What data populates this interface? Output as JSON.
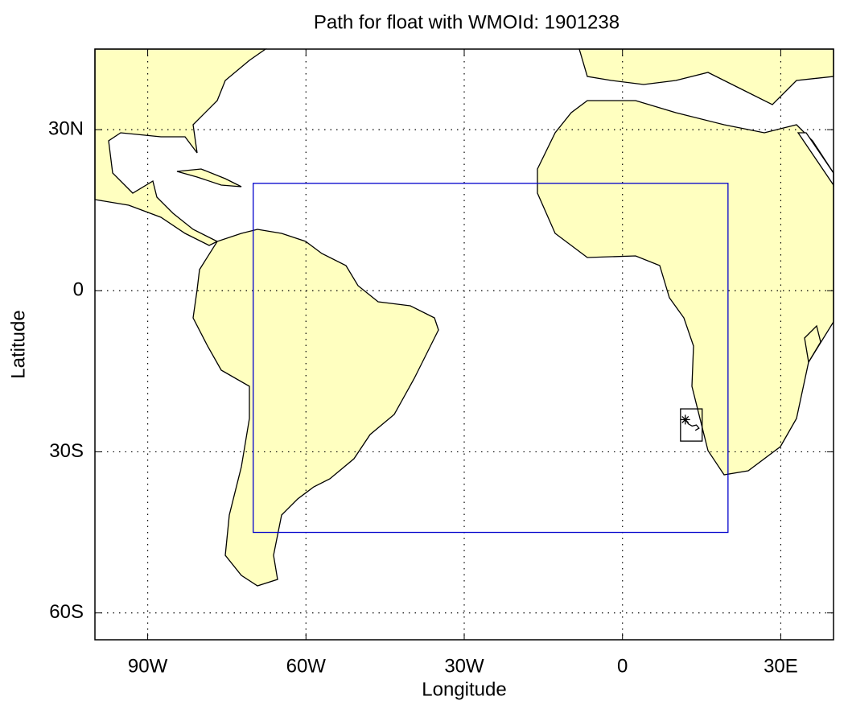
{
  "chart_data": {
    "type": "map",
    "title": "Path for float with WMOId: 1901238",
    "x_label": "Longitude",
    "y_label": "Latitude",
    "xlim": [
      -100,
      40
    ],
    "ylim": [
      -65,
      45
    ],
    "xticks": [
      {
        "value": -90,
        "label": "90W"
      },
      {
        "value": -60,
        "label": "60W"
      },
      {
        "value": -30,
        "label": "30W"
      },
      0,
      {
        "value": 30,
        "label": "30E"
      }
    ],
    "yticks": [
      {
        "value": 30,
        "label": "30N"
      },
      0,
      {
        "value": -30,
        "label": "30S"
      },
      {
        "value": -60,
        "label": "60S"
      }
    ],
    "grid": true,
    "land_color": "#ffffc0",
    "box": {
      "color": "#0000cc",
      "xlim": [
        -70,
        20
      ],
      "ylim": [
        -45,
        20
      ]
    },
    "track_box": {
      "color": "#000000",
      "xlim": [
        11,
        15.1
      ],
      "ylim": [
        -28,
        -22
      ]
    },
    "series": [
      {
        "color": "#000000",
        "x": [
          11.9,
          12.5,
          13.2,
          14.0,
          14.5,
          13.8
        ],
        "y": [
          -24.0,
          -24.8,
          -25.2,
          -25.0,
          -25.6,
          -26.0
        ]
      }
    ]
  }
}
